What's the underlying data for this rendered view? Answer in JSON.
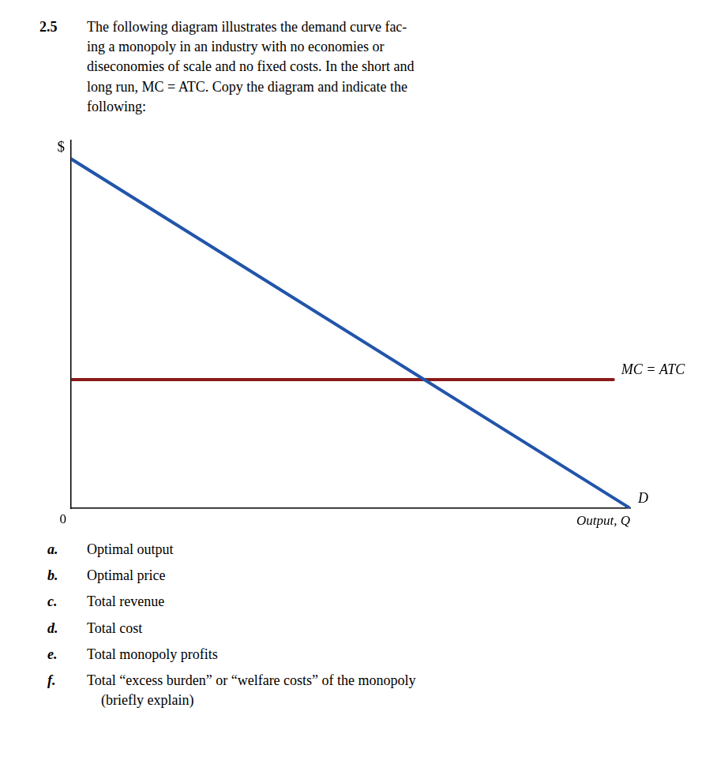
{
  "chart_data": {
    "type": "line",
    "title": "2.5",
    "subtitle": "The following diagram illustrates the demand curve fac-\ning a monopoly in an industry with no economies or\ndiseconomies of scale and no fixed costs. In the short and\nlong run, MC = ATC. Copy the diagram and indicate the\nfollowing:",
    "xlabel": "Output, Q",
    "ylabel": "$",
    "series": [
      {
        "name": "D",
        "color": "#2255aa",
        "x": [
          0,
          10
        ],
        "values": [
          9.5,
          0
        ]
      },
      {
        "name": "MC = ATC",
        "color": "#8b1a1a",
        "x": [
          0,
          9.7
        ],
        "values": [
          3.5,
          3.5
        ]
      }
    ],
    "xlim": [
      0,
      10
    ],
    "ylim": [
      0,
      10
    ],
    "grid": false,
    "tick_labels": false,
    "annotations": [
      {
        "text": "0",
        "x": 0,
        "y": 0
      },
      {
        "label": "a.",
        "text": "Optimal output"
      },
      {
        "label": "b.",
        "text": "Optimal price"
      },
      {
        "label": "c.",
        "text": "Total revenue"
      },
      {
        "label": "d.",
        "text": "Total cost"
      },
      {
        "label": "e.",
        "text": "Total monopoly profits"
      },
      {
        "label": "f.",
        "text": "Total “excess burden” or “welfare costs” of the monopoly\n    (briefly explain)"
      }
    ]
  }
}
